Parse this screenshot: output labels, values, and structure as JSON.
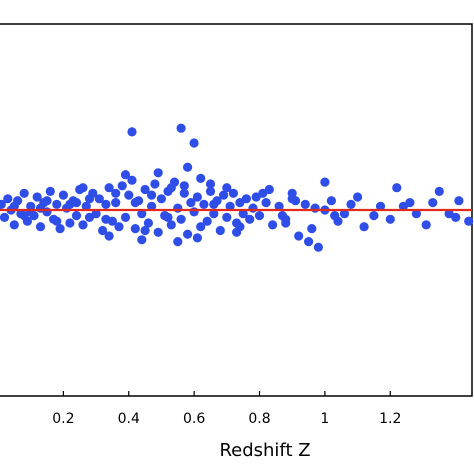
{
  "chart_data": {
    "type": "scatter",
    "title": "",
    "xlabel": "Redshift Z",
    "ylabel": "",
    "xlim": [
      0.0,
      1.45
    ],
    "ylim": [
      -1.0,
      1.0
    ],
    "x_ticks": [
      0.2,
      0.4,
      0.6,
      0.8,
      1.0,
      1.2
    ],
    "x_tick_labels": [
      "0.2",
      "0.4",
      "0.6",
      "0.8",
      "1",
      "1.2"
    ],
    "grid": false,
    "legend": "none",
    "point_color": "#2f4ee8",
    "line_color": "#e02a1a",
    "series": [
      {
        "kind": "points",
        "points": [
          [
            0.01,
            0.03
          ],
          [
            0.02,
            -0.04
          ],
          [
            0.03,
            0.06
          ],
          [
            0.04,
            0.0
          ],
          [
            0.05,
            -0.08
          ],
          [
            0.06,
            0.05
          ],
          [
            0.07,
            -0.02
          ],
          [
            0.08,
            0.09
          ],
          [
            0.09,
            -0.06
          ],
          [
            0.1,
            0.02
          ],
          [
            0.11,
            -0.03
          ],
          [
            0.12,
            0.07
          ],
          [
            0.13,
            -0.09
          ],
          [
            0.14,
            0.04
          ],
          [
            0.15,
            -0.01
          ],
          [
            0.16,
            0.1
          ],
          [
            0.17,
            -0.05
          ],
          [
            0.18,
            0.03
          ],
          [
            0.19,
            -0.1
          ],
          [
            0.2,
            0.08
          ],
          [
            0.21,
            0.01
          ],
          [
            0.22,
            -0.07
          ],
          [
            0.23,
            0.05
          ],
          [
            0.24,
            -0.03
          ],
          [
            0.25,
            0.11
          ],
          [
            0.26,
            -0.08
          ],
          [
            0.27,
            0.02
          ],
          [
            0.28,
            -0.04
          ],
          [
            0.29,
            0.09
          ],
          [
            0.3,
            -0.02
          ],
          [
            0.31,
            0.06
          ],
          [
            0.32,
            -0.11
          ],
          [
            0.33,
            0.03
          ],
          [
            0.34,
            0.12
          ],
          [
            0.35,
            -0.06
          ],
          [
            0.36,
            0.04
          ],
          [
            0.37,
            -0.09
          ],
          [
            0.38,
            0.13
          ],
          [
            0.39,
            -0.04
          ],
          [
            0.4,
            0.08
          ],
          [
            0.41,
            0.16
          ],
          [
            0.42,
            -0.1
          ],
          [
            0.43,
            0.05
          ],
          [
            0.44,
            -0.02
          ],
          [
            0.45,
            0.11
          ],
          [
            0.46,
            -0.07
          ],
          [
            0.47,
            0.02
          ],
          [
            0.48,
            0.14
          ],
          [
            0.49,
            -0.12
          ],
          [
            0.5,
            0.06
          ],
          [
            0.51,
            -0.03
          ],
          [
            0.52,
            0.1
          ],
          [
            0.53,
            -0.08
          ],
          [
            0.54,
            0.15
          ],
          [
            0.55,
            0.01
          ],
          [
            0.56,
            -0.05
          ],
          [
            0.57,
            0.09
          ],
          [
            0.58,
            -0.13
          ],
          [
            0.59,
            0.04
          ],
          [
            0.6,
            -0.01
          ],
          [
            0.61,
            0.07
          ],
          [
            0.62,
            -0.09
          ],
          [
            0.63,
            0.03
          ],
          [
            0.64,
            -0.06
          ],
          [
            0.65,
            0.1
          ],
          [
            0.66,
            -0.02
          ],
          [
            0.67,
            0.05
          ],
          [
            0.68,
            -0.11
          ],
          [
            0.69,
            0.08
          ],
          [
            0.7,
            -0.04
          ],
          [
            0.71,
            0.02
          ],
          [
            0.72,
            0.09
          ],
          [
            0.73,
            -0.07
          ],
          [
            0.74,
            0.04
          ],
          [
            0.75,
            -0.02
          ],
          [
            0.76,
            0.06
          ],
          [
            0.77,
            -0.05
          ],
          [
            0.78,
            0.01
          ],
          [
            0.79,
            0.07
          ],
          [
            0.8,
            -0.03
          ],
          [
            0.82,
            0.04
          ],
          [
            0.84,
            -0.08
          ],
          [
            0.86,
            0.02
          ],
          [
            0.88,
            -0.05
          ],
          [
            0.9,
            0.06
          ],
          [
            0.92,
            -0.14
          ],
          [
            0.94,
            0.03
          ],
          [
            0.95,
            -0.17
          ],
          [
            0.96,
            -0.1
          ],
          [
            0.97,
            0.01
          ],
          [
            0.98,
            -0.2
          ],
          [
            1.0,
            0.0
          ],
          [
            1.02,
            0.05
          ],
          [
            1.04,
            -0.06
          ],
          [
            1.08,
            0.03
          ],
          [
            1.12,
            -0.09
          ],
          [
            1.17,
            0.02
          ],
          [
            1.2,
            -0.05
          ],
          [
            1.26,
            0.04
          ],
          [
            1.31,
            -0.08
          ],
          [
            1.35,
            0.1
          ],
          [
            1.38,
            -0.02
          ],
          [
            1.41,
            0.05
          ],
          [
            1.44,
            -0.06
          ],
          [
            0.1,
            -0.01
          ],
          [
            0.15,
            0.05
          ],
          [
            0.22,
            0.03
          ],
          [
            0.28,
            0.06
          ],
          [
            0.33,
            -0.05
          ],
          [
            0.36,
            0.09
          ],
          [
            0.42,
            0.04
          ],
          [
            0.45,
            -0.11
          ],
          [
            0.47,
            0.08
          ],
          [
            0.52,
            -0.04
          ],
          [
            0.53,
            0.12
          ],
          [
            0.57,
            0.13
          ],
          [
            0.61,
            -0.15
          ],
          [
            0.66,
            0.03
          ],
          [
            0.7,
            0.12
          ],
          [
            0.74,
            -0.09
          ],
          [
            0.81,
            0.09
          ],
          [
            0.87,
            -0.03
          ],
          [
            0.91,
            0.05
          ],
          [
            1.06,
            -0.02
          ],
          [
            0.26,
            0.12
          ],
          [
            0.39,
            0.19
          ],
          [
            0.44,
            -0.16
          ],
          [
            0.58,
            0.23
          ],
          [
            0.62,
            0.17
          ],
          [
            0.34,
            -0.14
          ],
          [
            0.49,
            0.2
          ],
          [
            0.55,
            -0.17
          ],
          [
            0.65,
            0.14
          ],
          [
            0.73,
            -0.12
          ],
          [
            0.56,
            0.44
          ],
          [
            0.6,
            0.36
          ],
          [
            0.41,
            0.42
          ],
          [
            0.83,
            0.11
          ],
          [
            0.88,
            -0.07
          ],
          [
            0.9,
            0.09
          ],
          [
            1.0,
            0.15
          ],
          [
            1.03,
            -0.03
          ],
          [
            1.1,
            0.07
          ],
          [
            1.15,
            -0.03
          ],
          [
            1.22,
            0.12
          ],
          [
            1.24,
            0.02
          ],
          [
            1.28,
            -0.02
          ],
          [
            1.33,
            0.04
          ],
          [
            1.4,
            -0.04
          ],
          [
            0.05,
            0.02
          ],
          [
            0.08,
            -0.03
          ],
          [
            0.13,
            0.01
          ],
          [
            0.18,
            -0.06
          ],
          [
            0.24,
            0.04
          ]
        ]
      },
      {
        "kind": "fit-line",
        "x": [
          0.0,
          1.45
        ],
        "y": [
          0.0,
          0.0
        ]
      }
    ]
  }
}
